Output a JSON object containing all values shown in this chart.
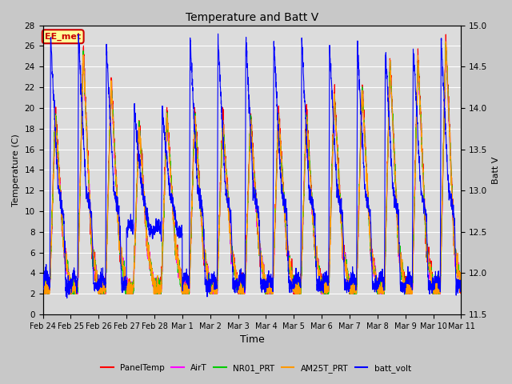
{
  "title": "Temperature and Batt V",
  "xlabel": "Time",
  "ylabel_left": "Temperature (C)",
  "ylabel_right": "Batt V",
  "ylim_left": [
    0,
    28
  ],
  "ylim_right": [
    11.5,
    15.0
  ],
  "yticks_left": [
    0,
    2,
    4,
    6,
    8,
    10,
    12,
    14,
    16,
    18,
    20,
    22,
    24,
    26,
    28
  ],
  "yticks_right": [
    11.5,
    12.0,
    12.5,
    13.0,
    13.5,
    14.0,
    14.5,
    15.0
  ],
  "xtick_labels": [
    "Feb 24",
    "Feb 25",
    "Feb 26",
    "Feb 27",
    "Feb 28",
    "Mar 1",
    "Mar 2",
    "Mar 3",
    "Mar 4",
    "Mar 5",
    "Mar 6",
    "Mar 7",
    "Mar 8",
    "Mar 9",
    "Mar 10",
    "Mar 11"
  ],
  "annotation_text": "EE_met",
  "annotation_color": "#cc0000",
  "annotation_bg": "#ffff99",
  "line_colors": {
    "PanelTemp": "#ff0000",
    "AirT": "#ff00ff",
    "NR01_PRT": "#00cc00",
    "AM25T_PRT": "#ff9900",
    "batt_volt": "#0000ff"
  },
  "legend_labels": [
    "PanelTemp",
    "AirT",
    "NR01_PRT",
    "AM25T_PRT",
    "batt_volt"
  ],
  "fig_bg": "#c8c8c8",
  "plot_bg": "#e0e0e0",
  "shaded_bg": "#d8d8d8"
}
